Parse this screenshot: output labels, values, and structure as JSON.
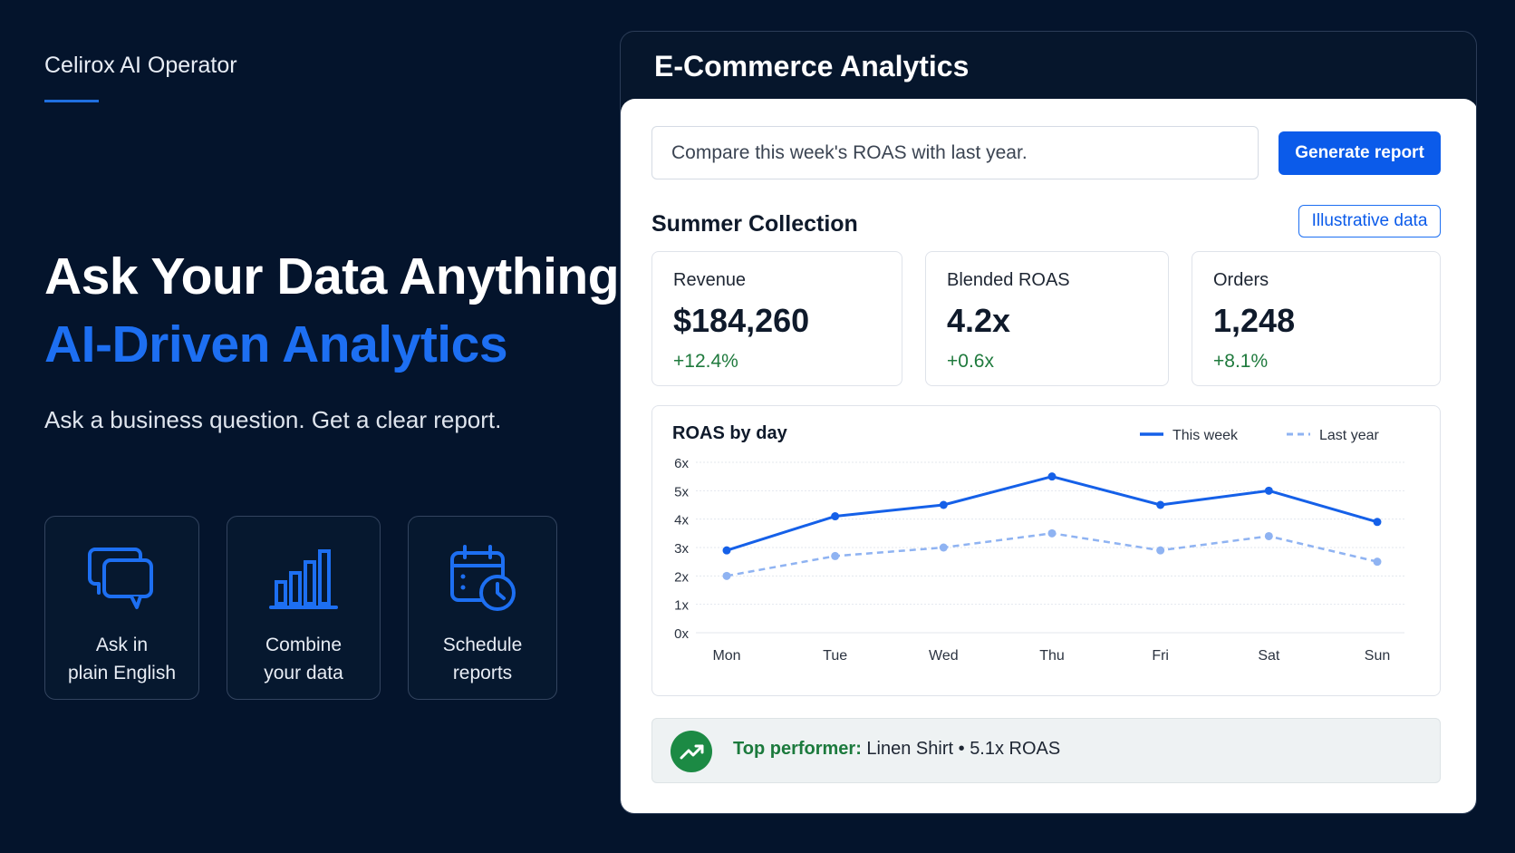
{
  "brand": "Celirox AI Operator",
  "hero": {
    "line1": "Ask Your Data Anything",
    "line2": "AI-Driven Analytics",
    "subtitle": "Ask a business question. Get a clear report."
  },
  "features": [
    {
      "label": "Ask in\nplain English",
      "icon": "chat-bubbles-icon"
    },
    {
      "label": "Combine\nyour data",
      "icon": "bar-chart-icon"
    },
    {
      "label": "Schedule\nreports",
      "icon": "calendar-clock-icon"
    }
  ],
  "panel": {
    "title": "E-Commerce Analytics",
    "search_value": "Compare this week's ROAS with last year.",
    "generate_label": "Generate report",
    "section_title": "Summer Collection",
    "badge": "Illustrative data",
    "kpis": [
      {
        "label": "Revenue",
        "value": "$184,260",
        "delta": "+12.4%"
      },
      {
        "label": "Blended ROAS",
        "value": "4.2x",
        "delta": "+0.6x"
      },
      {
        "label": "Orders",
        "value": "1,248",
        "delta": "+8.1%"
      }
    ],
    "top_performer": {
      "label": "Top performer:",
      "product": "Linen Shirt",
      "separator": "•",
      "metric": "5.1x ROAS"
    }
  },
  "colors": {
    "background": "#04142c",
    "accent": "#1d6ff2",
    "positive": "#1f7a3d",
    "this_week": "#1560e8",
    "last_year": "#8fb3f2"
  },
  "chart_data": {
    "type": "line",
    "title": "ROAS by day",
    "x": [
      "Mon",
      "Tue",
      "Wed",
      "Thu",
      "Fri",
      "Sat",
      "Sun"
    ],
    "y_ticks": [
      "0x",
      "1x",
      "2x",
      "3x",
      "4x",
      "5x",
      "6x"
    ],
    "ylim": [
      0,
      6
    ],
    "grid": true,
    "legend_position": "top-right",
    "series": [
      {
        "name": "This week",
        "style": "solid",
        "values": [
          2.9,
          4.1,
          4.5,
          5.5,
          4.5,
          5.0,
          3.9
        ]
      },
      {
        "name": "Last year",
        "style": "dashed",
        "values": [
          2.0,
          2.7,
          3.0,
          3.5,
          2.9,
          3.4,
          2.5
        ]
      }
    ]
  }
}
